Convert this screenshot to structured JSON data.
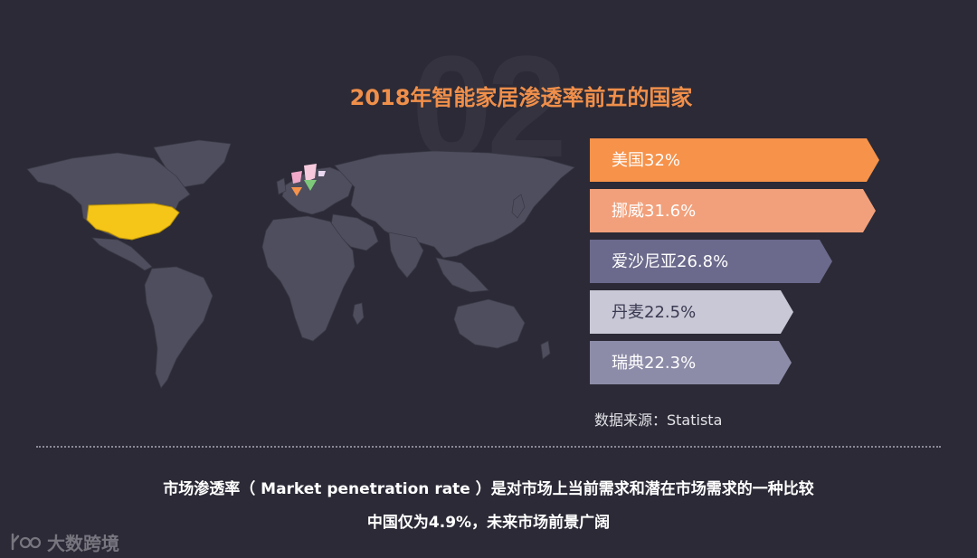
{
  "watermark": "02",
  "title": "2018年智能家居渗透率前五的国家",
  "chart_data": {
    "type": "bar",
    "title": "2018年智能家居渗透率前五的国家",
    "categories": [
      "美国",
      "挪威",
      "爱沙尼亚",
      "丹麦",
      "瑞典"
    ],
    "values": [
      32,
      31.6,
      26.8,
      22.5,
      22.3
    ],
    "labels": [
      "美国32%",
      "挪威31.6%",
      "爱沙尼亚26.8%",
      "丹麦22.5%",
      "瑞典22.3%"
    ],
    "unit": "%",
    "colors": [
      "#f6924a",
      "#f2a07b",
      "#6b6a8c",
      "#c9c8d6",
      "#8d8ca8"
    ],
    "label_colors": [
      "#ffffff",
      "#ffffff",
      "#ffffff",
      "#3a3a52",
      "#ffffff"
    ],
    "xlim": [
      0,
      34
    ]
  },
  "map": {
    "highlight_color": "#f5c518",
    "land_color": "#4e4e5e"
  },
  "source": "数据来源：Statista",
  "footnote_line1": "市场渗透率（ Market penetration rate ）是对市场上当前需求和潜在市场需求的一种比较",
  "footnote_line2": "中国仅为4.9%，未来市场前景广阔",
  "logo_text": "大数跨境"
}
